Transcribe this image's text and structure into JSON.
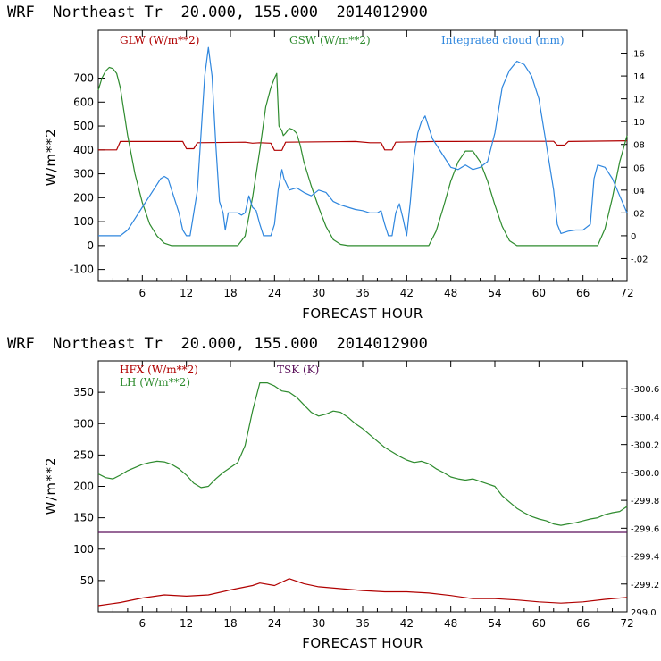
{
  "colors": {
    "glw": "#b00000",
    "gsw": "#2e8b2e",
    "cloud": "#2e86de",
    "hfx": "#b00000",
    "lh": "#2e8b2e",
    "tsk": "#5a0f5a",
    "axis": "#000000"
  },
  "chart_data": [
    {
      "type": "line",
      "title": "WRF  Northeast Tr  20.000, 155.000  2014012900",
      "xlabel": "FORECAST HOUR",
      "ylabel": "W/m**2",
      "xlim": [
        0,
        72
      ],
      "ylim": [
        -150,
        900
      ],
      "xticks": [
        6,
        12,
        18,
        24,
        30,
        36,
        42,
        48,
        54,
        60,
        66,
        72
      ],
      "yticks": [
        -100,
        0,
        100,
        200,
        300,
        400,
        500,
        600,
        700
      ],
      "y2lim": [
        -0.04,
        0.18
      ],
      "y2ticks": [
        -0.02,
        0,
        0.02,
        0.04,
        0.06,
        0.08,
        0.1,
        0.12,
        0.14,
        0.16
      ],
      "y2ticklabels": [
        "-.02",
        "0",
        ".02",
        ".04",
        ".06",
        ".08",
        ".10",
        ".12",
        ".14",
        ".16"
      ],
      "legend": [
        "GLW (W/m**2)",
        "GSW (W/m**2)",
        "Integrated cloud (mm)"
      ],
      "series": [
        {
          "name": "GLW (W/m**2)",
          "axis": "left",
          "x": [
            0,
            2.5,
            3,
            11.5,
            12,
            13,
            13.5,
            20,
            21,
            22,
            23.5,
            24,
            25,
            25.5,
            35,
            37,
            38.5,
            39,
            40,
            40.5,
            46,
            55,
            62,
            62.5,
            63.5,
            64,
            72
          ],
          "y": [
            400,
            400,
            435,
            435,
            405,
            405,
            430,
            432,
            428,
            430,
            428,
            398,
            398,
            432,
            435,
            430,
            430,
            400,
            400,
            432,
            435,
            436,
            436,
            420,
            420,
            435,
            438
          ]
        },
        {
          "name": "GSW (W/m**2)",
          "axis": "left",
          "x": [
            0,
            0.5,
            1,
            1.5,
            2,
            2.5,
            3,
            3.5,
            4,
            5,
            6,
            7,
            8,
            9,
            10,
            11,
            12,
            12.5,
            13,
            14,
            15,
            16,
            17,
            18,
            19,
            20,
            21,
            22,
            22.8,
            23.5,
            24,
            24.3,
            24.6,
            25,
            25.2,
            25.5,
            26,
            26.5,
            27,
            27.5,
            28,
            29,
            30,
            31,
            32,
            33,
            34,
            35,
            36,
            37,
            38,
            39,
            40,
            41,
            42,
            43,
            44,
            45,
            46,
            47,
            48,
            49,
            50,
            51,
            52,
            53,
            54,
            55,
            56,
            57,
            58,
            59,
            60,
            61,
            62,
            63,
            64,
            65,
            66,
            67,
            68,
            69,
            70,
            71,
            72
          ],
          "y": [
            650,
            700,
            730,
            745,
            740,
            720,
            660,
            560,
            460,
            300,
            180,
            90,
            40,
            10,
            0,
            0,
            0,
            0,
            0,
            0,
            0,
            0,
            0,
            0,
            0,
            40,
            200,
            400,
            580,
            660,
            700,
            720,
            500,
            480,
            460,
            470,
            490,
            485,
            470,
            420,
            350,
            250,
            160,
            80,
            25,
            5,
            0,
            0,
            0,
            0,
            0,
            0,
            0,
            0,
            0,
            0,
            0,
            0,
            60,
            160,
            270,
            350,
            395,
            395,
            350,
            270,
            170,
            80,
            20,
            0,
            0,
            0,
            0,
            0,
            0,
            0,
            0,
            0,
            0,
            0,
            0,
            70,
            200,
            350,
            460
          ]
        },
        {
          "name": "Integrated cloud (mm)",
          "axis": "right",
          "x": [
            0,
            3,
            4,
            5,
            6,
            7,
            8,
            8.5,
            9,
            9.5,
            10,
            11,
            11.5,
            12,
            12.5,
            13,
            13.5,
            14,
            14.5,
            15,
            15.5,
            16,
            16.5,
            17,
            17.3,
            17.7,
            18,
            18.5,
            19,
            19.5,
            20,
            20.5,
            21,
            21.5,
            22,
            22.5,
            23,
            23.5,
            24,
            24.5,
            25,
            25.3,
            26,
            27,
            28,
            29,
            30,
            31,
            32,
            33,
            34,
            35,
            36,
            37,
            38,
            38.5,
            39,
            39.5,
            40,
            40.5,
            41,
            41.5,
            42,
            42.5,
            43,
            43.5,
            44,
            44.5,
            45,
            45.5,
            46,
            47,
            48,
            49,
            50,
            51,
            52,
            53,
            54,
            55,
            56,
            57,
            58,
            59,
            60,
            61,
            62,
            62.5,
            63,
            64,
            65,
            66,
            67,
            67.5,
            68,
            69,
            70,
            71,
            72
          ],
          "y": [
            0,
            0,
            0.005,
            0.015,
            0.025,
            0.035,
            0.045,
            0.05,
            0.052,
            0.05,
            0.04,
            0.02,
            0.005,
            0,
            0,
            0.02,
            0.04,
            0.09,
            0.14,
            0.165,
            0.14,
            0.08,
            0.03,
            0.02,
            0.005,
            0.02,
            0.02,
            0.02,
            0.02,
            0.018,
            0.02,
            0.035,
            0.025,
            0.022,
            0.01,
            0,
            0,
            0,
            0.01,
            0.04,
            0.058,
            0.05,
            0.04,
            0.042,
            0.038,
            0.035,
            0.04,
            0.038,
            0.03,
            0.027,
            0.025,
            0.023,
            0.022,
            0.02,
            0.02,
            0.022,
            0.01,
            0,
            0,
            0.02,
            0.028,
            0.015,
            0,
            0.03,
            0.07,
            0.09,
            0.1,
            0.105,
            0.095,
            0.085,
            0.08,
            0.07,
            0.06,
            0.058,
            0.062,
            0.058,
            0.06,
            0.065,
            0.09,
            0.13,
            0.145,
            0.153,
            0.15,
            0.14,
            0.12,
            0.08,
            0.04,
            0.01,
            0.002,
            0.004,
            0.005,
            0.005,
            0.01,
            0.05,
            0.062,
            0.06,
            0.05,
            0.035,
            0.02
          ]
        }
      ]
    },
    {
      "type": "line",
      "title": "WRF  Northeast Tr  20.000, 155.000  2014012900",
      "xlabel": "FORECAST HOUR",
      "ylabel": "W/m**2",
      "xlim": [
        0,
        72
      ],
      "ylim": [
        0,
        400
      ],
      "xticks": [
        6,
        12,
        18,
        24,
        30,
        36,
        42,
        48,
        54,
        60,
        66,
        72
      ],
      "yticks": [
        50,
        100,
        150,
        200,
        250,
        300,
        350
      ],
      "y2lim": [
        299.0,
        300.8
      ],
      "y2ticks": [
        299.0,
        299.2,
        299.4,
        299.6,
        299.8,
        300.0,
        300.2,
        300.4,
        300.6
      ],
      "y2ticklabels": [
        "299.0",
        "-299.2",
        "-299.4",
        "-299.6",
        "-299.8",
        "-300.0",
        "-300.2",
        "-300.4",
        "-300.6"
      ],
      "legend": [
        "HFX (W/m**2)",
        "LH  (W/m**2)",
        "TSK (K)"
      ],
      "series": [
        {
          "name": "HFX (W/m**2)",
          "axis": "left",
          "x": [
            0,
            3,
            6,
            9,
            12,
            15,
            18,
            21,
            22,
            24,
            26,
            28,
            30,
            33,
            36,
            39,
            42,
            45,
            48,
            51,
            54,
            57,
            60,
            63,
            66,
            69,
            72
          ],
          "y": [
            10,
            15,
            22,
            27,
            25,
            27,
            35,
            42,
            46,
            42,
            53,
            45,
            40,
            37,
            34,
            32,
            32,
            30,
            26,
            21,
            21,
            19,
            16,
            14,
            16,
            20,
            23
          ]
        },
        {
          "name": "LH  (W/m**2)",
          "axis": "left",
          "x": [
            0,
            1,
            2,
            3,
            4,
            5,
            6,
            7,
            8,
            9,
            10,
            11,
            12,
            13,
            14,
            15,
            16,
            17,
            18,
            19,
            20,
            21,
            22,
            23,
            24,
            25,
            26,
            27,
            28,
            29,
            30,
            31,
            32,
            33,
            34,
            35,
            36,
            37,
            38,
            39,
            40,
            41,
            42,
            43,
            44,
            45,
            46,
            47,
            48,
            49,
            50,
            51,
            52,
            53,
            54,
            55,
            56,
            57,
            58,
            59,
            60,
            61,
            62,
            63,
            64,
            65,
            66,
            67,
            68,
            69,
            70,
            71,
            72
          ],
          "y": [
            220,
            214,
            212,
            218,
            225,
            230,
            235,
            238,
            240,
            239,
            235,
            228,
            218,
            205,
            198,
            200,
            212,
            222,
            230,
            238,
            265,
            320,
            365,
            365,
            360,
            352,
            350,
            342,
            330,
            318,
            312,
            315,
            320,
            318,
            310,
            300,
            292,
            282,
            272,
            262,
            255,
            248,
            242,
            238,
            240,
            236,
            228,
            222,
            215,
            212,
            210,
            212,
            208,
            204,
            200,
            185,
            175,
            165,
            158,
            152,
            148,
            145,
            140,
            138,
            140,
            142,
            145,
            148,
            150,
            155,
            158,
            160,
            168
          ]
        },
        {
          "name": "TSK (K)",
          "axis": "right",
          "x": [
            0,
            72
          ],
          "y": [
            299.57,
            299.57
          ]
        }
      ]
    }
  ]
}
